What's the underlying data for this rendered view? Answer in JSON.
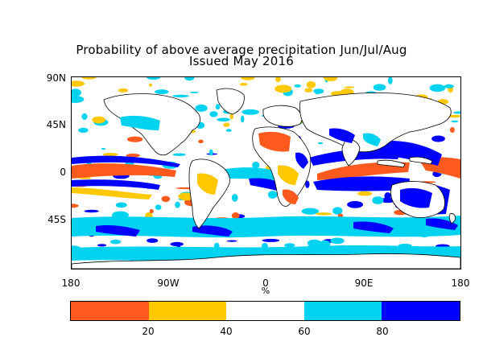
{
  "title": {
    "line1": "Probability of above average precipitation Jun/Jul/Aug",
    "line2": "Issued May 2016"
  },
  "map": {
    "lat_labels": [
      "90N",
      "45N",
      "0",
      "45S"
    ],
    "lon_labels": [
      "180",
      "90W",
      "0",
      "90E",
      "180"
    ],
    "unit": "%"
  },
  "colorbar": {
    "colors": [
      "#ff5a1e",
      "#ffc800",
      "#ffffff",
      "#00d2f0",
      "#0000ff"
    ],
    "tick_labels": [
      "20",
      "40",
      "60",
      "80"
    ]
  },
  "palette": {
    "land_outline": "#000000",
    "low_strong": "#ff5a1e",
    "low": "#ffc800",
    "neutral": "#ffffff",
    "high": "#00d2f0",
    "high_strong": "#0000ff"
  }
}
